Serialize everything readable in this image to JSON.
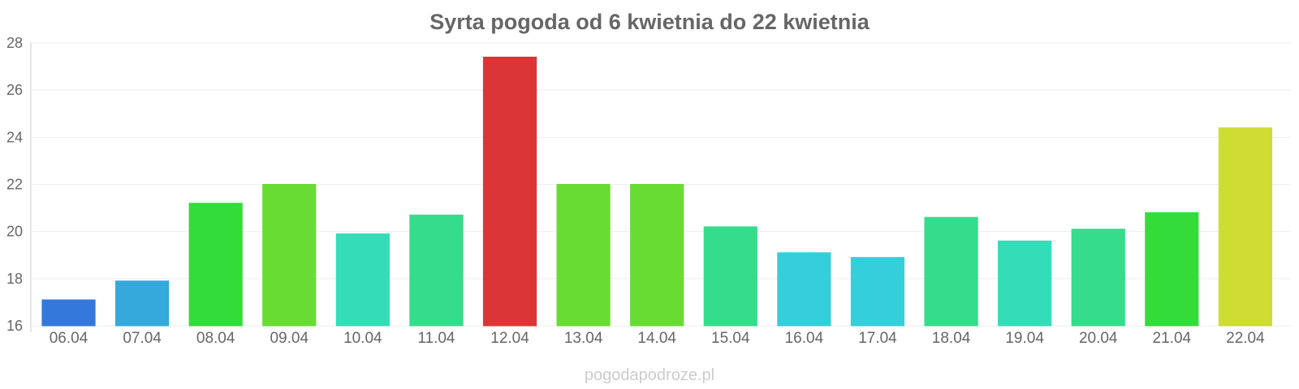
{
  "chart_data": {
    "type": "bar",
    "title": "Syrta pogoda od 6 kwietnia do 22 kwietnia",
    "xlabel": "",
    "ylabel": "",
    "ylim": [
      16,
      28
    ],
    "yticks": [
      "16",
      "18",
      "20",
      "22",
      "24",
      "26",
      "28"
    ],
    "grid": true,
    "legend": "none",
    "categories": [
      "06.04",
      "07.04",
      "08.04",
      "09.04",
      "10.04",
      "11.04",
      "12.04",
      "13.04",
      "14.04",
      "15.04",
      "16.04",
      "17.04",
      "18.04",
      "19.04",
      "20.04",
      "21.04",
      "22.04"
    ],
    "values": [
      17.1,
      17.9,
      21.2,
      22.0,
      19.9,
      20.7,
      27.4,
      22.0,
      22.0,
      20.2,
      19.1,
      18.9,
      20.6,
      19.6,
      20.1,
      20.8,
      24.4
    ],
    "colors": [
      "#3478dc",
      "#35a8dc",
      "#34dc3a",
      "#69dc34",
      "#35dcb8",
      "#35dc8c",
      "#dc3535",
      "#69dc34",
      "#69dc34",
      "#35dc8c",
      "#35cfdc",
      "#35cfdc",
      "#35dc8c",
      "#35dcb8",
      "#35dc8c",
      "#34dc3a",
      "#cedc34"
    ]
  },
  "footer": {
    "source": "pogodapodroze.pl"
  }
}
